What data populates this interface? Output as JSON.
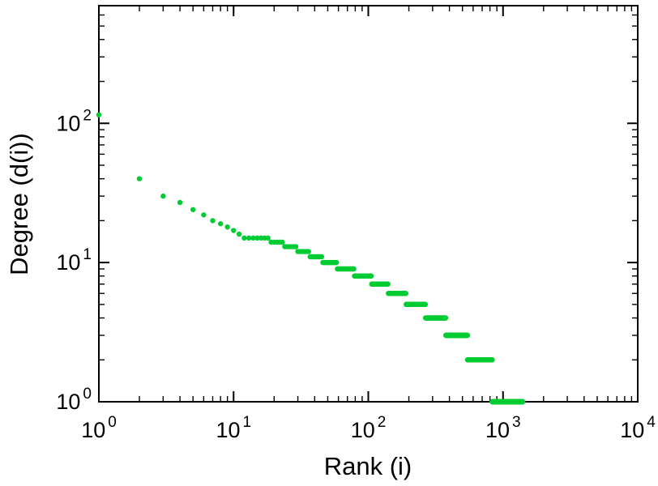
{
  "figure": {
    "background": "#ffffff",
    "frame_color": "#000000",
    "tick_color": "#000000",
    "text_color": "#000000"
  },
  "chart_data": {
    "type": "scatter",
    "title": "",
    "xlabel": "Rank (i)",
    "ylabel": "Degree (d(i))",
    "x_scale": "log",
    "y_scale": "log",
    "xlim": [
      1,
      10000
    ],
    "ylim": [
      1,
      700
    ],
    "x_tick_exponents": [
      0,
      1,
      2,
      3,
      4
    ],
    "y_tick_exponents": [
      0,
      1,
      2
    ],
    "tick_label_base": "10",
    "grid": "off",
    "legend": "none",
    "marker_shape": "filled-circle",
    "marker_color": "#00cc33",
    "marker_radius": 3.2,
    "series_name": "degree-vs-rank",
    "degree_rank_segments": [
      {
        "degree": 115,
        "rank_start": 1,
        "rank_end": 1
      },
      {
        "degree": 40,
        "rank_start": 2,
        "rank_end": 2
      },
      {
        "degree": 30,
        "rank_start": 3,
        "rank_end": 3
      },
      {
        "degree": 27,
        "rank_start": 4,
        "rank_end": 4
      },
      {
        "degree": 24,
        "rank_start": 5,
        "rank_end": 5
      },
      {
        "degree": 22,
        "rank_start": 6,
        "rank_end": 6
      },
      {
        "degree": 20,
        "rank_start": 7,
        "rank_end": 7
      },
      {
        "degree": 19,
        "rank_start": 8,
        "rank_end": 8
      },
      {
        "degree": 18,
        "rank_start": 9,
        "rank_end": 9
      },
      {
        "degree": 17,
        "rank_start": 10,
        "rank_end": 10
      },
      {
        "degree": 16,
        "rank_start": 11,
        "rank_end": 11
      },
      {
        "degree": 15,
        "rank_start": 12,
        "rank_end": 18
      },
      {
        "degree": 14,
        "rank_start": 19,
        "rank_end": 23
      },
      {
        "degree": 13,
        "rank_start": 24,
        "rank_end": 29
      },
      {
        "degree": 12,
        "rank_start": 30,
        "rank_end": 36
      },
      {
        "degree": 11,
        "rank_start": 37,
        "rank_end": 45
      },
      {
        "degree": 10,
        "rank_start": 46,
        "rank_end": 58
      },
      {
        "degree": 9,
        "rank_start": 59,
        "rank_end": 78
      },
      {
        "degree": 8,
        "rank_start": 79,
        "rank_end": 105
      },
      {
        "degree": 7,
        "rank_start": 106,
        "rank_end": 140
      },
      {
        "degree": 6,
        "rank_start": 141,
        "rank_end": 190
      },
      {
        "degree": 5,
        "rank_start": 191,
        "rank_end": 265
      },
      {
        "degree": 4,
        "rank_start": 266,
        "rank_end": 375
      },
      {
        "degree": 3,
        "rank_start": 376,
        "rank_end": 545
      },
      {
        "degree": 2,
        "rank_start": 546,
        "rank_end": 830
      },
      {
        "degree": 1,
        "rank_start": 831,
        "rank_end": 1400
      }
    ]
  }
}
